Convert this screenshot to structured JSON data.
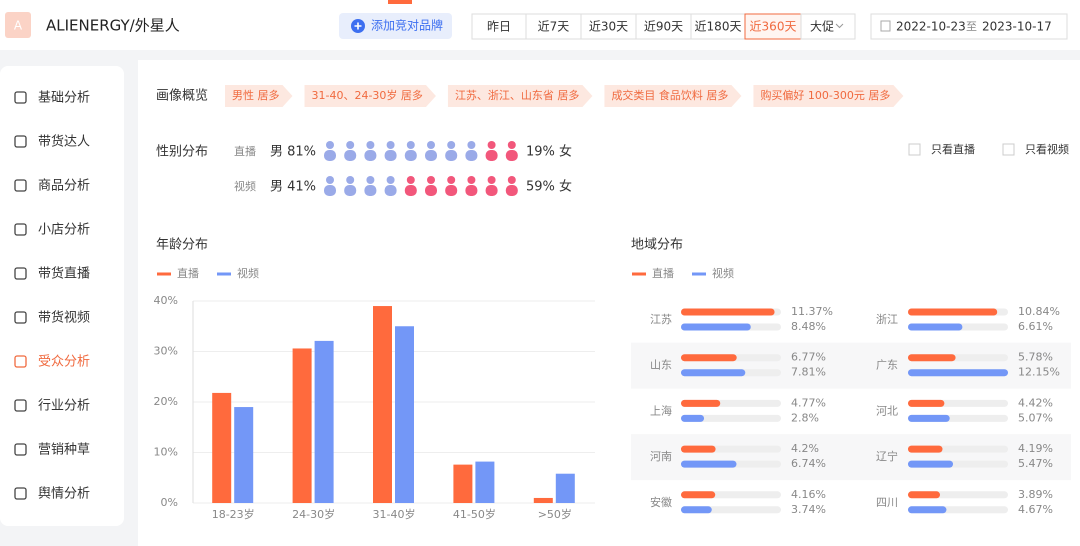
{
  "header": {
    "logo": "A",
    "brand": "ALIENERGY/外星人",
    "add_button": "添加竞对品牌",
    "time_tabs": [
      "昨日",
      "近7天",
      "近30天",
      "近90天",
      "近180天",
      "近360天",
      "大促"
    ],
    "active_tab": 5,
    "date_start": "2022-10-23",
    "date_sep": "至",
    "date_end": "2023-10-17"
  },
  "sidebar": {
    "items": [
      "基础分析",
      "带货达人",
      "商品分析",
      "小店分析",
      "带货直播",
      "带货视频",
      "受众分析",
      "行业分析",
      "营销种草",
      "舆情分析"
    ],
    "active": 6
  },
  "portrait": {
    "label": "画像概览",
    "tags": [
      "男性 居多",
      "31-40、24-30岁 居多",
      "江苏、浙江、山东省 居多",
      "成交类目 食品饮料 居多",
      "购买偏好 100-300元 居多"
    ]
  },
  "gender": {
    "label": "性别分布",
    "male_color": "#9aaae8",
    "female_color": "#f2577b",
    "rows": [
      {
        "name": "直播",
        "male": {
          "value": 81,
          "label": "男 81%"
        },
        "female": {
          "value": 19,
          "label": "19% 女"
        }
      },
      {
        "name": "视频",
        "male": {
          "value": 41,
          "label": "男 41%"
        },
        "female": {
          "value": 59,
          "label": "59% 女"
        }
      }
    ]
  },
  "filters": [
    "只看直播",
    "只看视频"
  ],
  "chart_data": [
    {
      "type": "bar",
      "title": "年龄分布",
      "categories": [
        "18-23岁",
        "24-30岁",
        "31-40岁",
        "41-50岁",
        ">50岁"
      ],
      "series": [
        {
          "name": "直播",
          "color": "#ff6a3d",
          "values": [
            21.8,
            30.6,
            39,
            7.6,
            1
          ]
        },
        {
          "name": "视频",
          "color": "#7397f7",
          "values": [
            19,
            32.1,
            35,
            8.2,
            5.8
          ]
        }
      ],
      "ylim": [
        0,
        40
      ],
      "yticks": [
        {
          "value": 0,
          "label": "0%"
        },
        {
          "value": 10,
          "label": "10%"
        },
        {
          "value": 20,
          "label": "20%"
        },
        {
          "value": 30,
          "label": "30%"
        },
        {
          "value": 40,
          "label": "40%"
        }
      ],
      "grid": true
    },
    {
      "type": "bar",
      "horizontal": true,
      "title": "地域分布",
      "categories": [
        "江苏",
        "浙江",
        "山东",
        "广东",
        "上海",
        "河北",
        "河南",
        "辽宁",
        "安徽",
        "四川"
      ],
      "series": [
        {
          "name": "直播",
          "color": "#ff6a3d",
          "values": [
            11.37,
            10.84,
            6.77,
            5.78,
            4.77,
            4.42,
            4.2,
            4.19,
            4.16,
            3.89
          ],
          "value_labels": [
            "11.37%",
            "10.84%",
            "6.77%",
            "5.78%",
            "4.77%",
            "4.42%",
            "4.2%",
            "4.19%",
            "4.16%",
            "3.89%"
          ]
        },
        {
          "name": "视频",
          "color": "#7397f7",
          "values": [
            8.48,
            6.61,
            7.81,
            12.15,
            2.8,
            5.07,
            6.74,
            5.47,
            3.74,
            4.67
          ],
          "value_labels": [
            "8.48%",
            "6.61%",
            "7.81%",
            "12.15%",
            "2.8%",
            "5.07%",
            "6.74%",
            "5.47%",
            "3.74%",
            "4.67%"
          ]
        }
      ]
    }
  ]
}
